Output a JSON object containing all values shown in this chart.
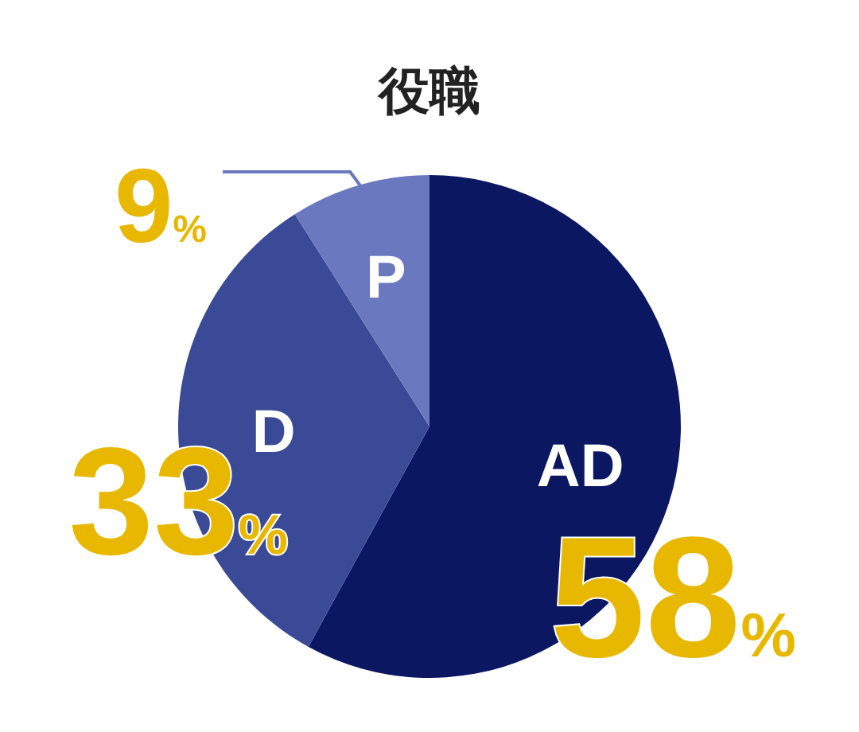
{
  "chart_data": {
    "type": "pie",
    "title": "役職",
    "categories": [
      "AD",
      "D",
      "P"
    ],
    "values": [
      58,
      33,
      9
    ],
    "colors": [
      "#0b1761",
      "#3b4a96",
      "#6a78bf"
    ],
    "value_labels": [
      "58%",
      "33%",
      "9%"
    ]
  }
}
